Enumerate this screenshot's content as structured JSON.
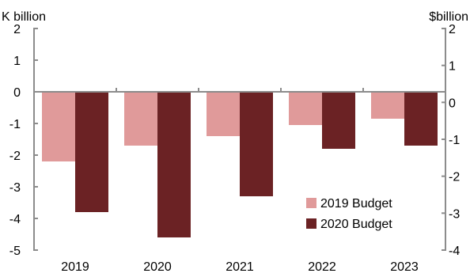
{
  "chart_data": {
    "type": "bar",
    "title": "",
    "ylabel_left": "K billion",
    "ylabel_right": "$billion",
    "categories": [
      "2019",
      "2020",
      "2021",
      "2022",
      "2023"
    ],
    "series": [
      {
        "name": "2019 Budget",
        "color": "#e09a9a",
        "values": [
          -2.2,
          -1.7,
          -1.4,
          -1.05,
          -0.85
        ]
      },
      {
        "name": "2020 Budget",
        "color": "#6b2224",
        "values": [
          -3.8,
          -4.6,
          -3.3,
          -1.8,
          -1.7
        ]
      }
    ],
    "ylim_left": [
      -5,
      2
    ],
    "yticks_left": [
      "2",
      "1",
      "0",
      "-1",
      "-2",
      "-3",
      "-4",
      "-5"
    ],
    "ylim_right": [
      -4,
      2
    ],
    "yticks_right": [
      "2",
      "1",
      "0",
      "-1",
      "-2",
      "-3",
      "-4"
    ],
    "legend_position": "bottom-right",
    "grid": false
  }
}
